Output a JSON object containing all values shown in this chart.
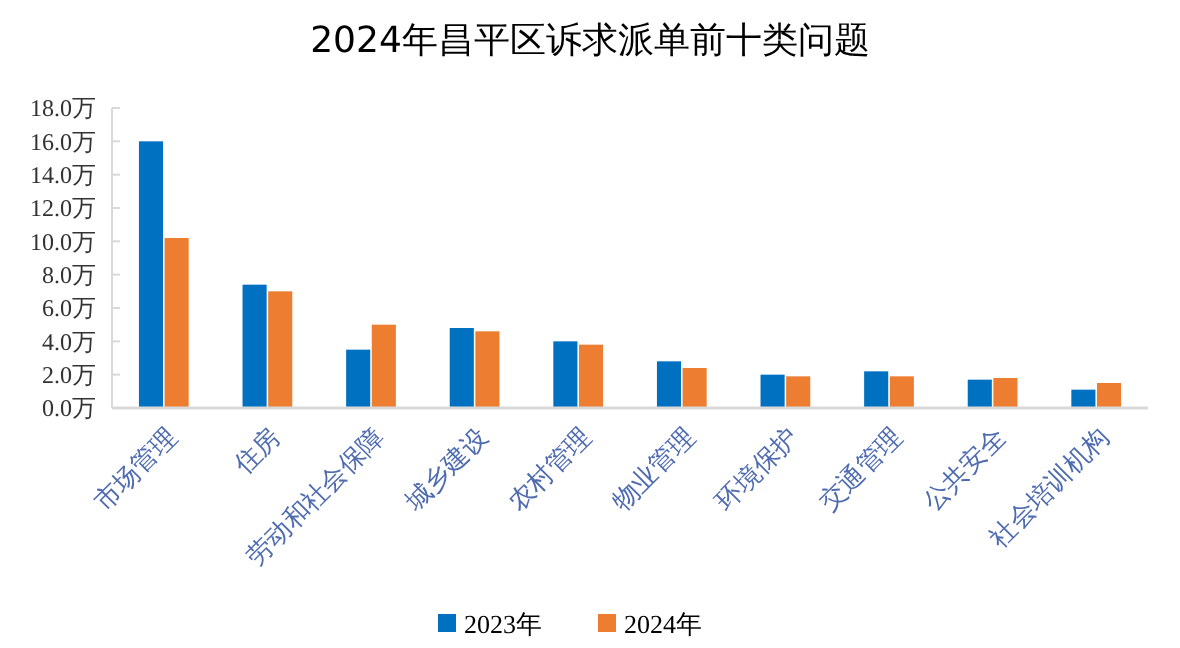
{
  "chart_data": {
    "type": "bar",
    "title": "2024年昌平区诉求派单前十类问题",
    "categories": [
      "市场管理",
      "住房",
      "劳动和社会保障",
      "城乡建设",
      "农村管理",
      "物业管理",
      "环境保护",
      "交通管理",
      "公共安全",
      "社会培训机构"
    ],
    "series": [
      {
        "name": "2023年",
        "color": "#0070c0",
        "values": [
          16.0,
          7.4,
          3.5,
          4.8,
          4.0,
          2.8,
          2.0,
          2.2,
          1.7,
          1.1
        ]
      },
      {
        "name": "2024年",
        "color": "#ed7d31",
        "values": [
          10.2,
          7.0,
          5.0,
          4.6,
          3.8,
          2.4,
          1.9,
          1.9,
          1.8,
          1.5
        ]
      }
    ],
    "ylim": [
      0,
      18
    ],
    "yticks": [
      {
        "value": 0,
        "label": "0.0万"
      },
      {
        "value": 2,
        "label": "2.0万"
      },
      {
        "value": 4,
        "label": "4.0万"
      },
      {
        "value": 6,
        "label": "6.0万"
      },
      {
        "value": 8,
        "label": "8.0万"
      },
      {
        "value": 10,
        "label": "10.0万"
      },
      {
        "value": 12,
        "label": "12.0万"
      },
      {
        "value": 14,
        "label": "14.0万"
      },
      {
        "value": 16,
        "label": "16.0万"
      },
      {
        "value": 18,
        "label": "18.0万"
      }
    ],
    "legend": "bottom"
  }
}
